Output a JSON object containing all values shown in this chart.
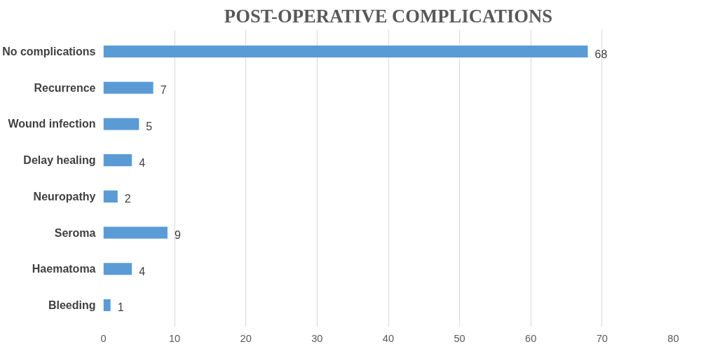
{
  "chart_data": {
    "type": "bar",
    "orientation": "horizontal",
    "title": "POST-OPERATIVE COMPLICATIONS",
    "categories": [
      "No complications",
      "Recurrence",
      "Wound infection",
      "Delay healing",
      "Neuropathy",
      "Seroma",
      "Haematoma",
      "Bleeding"
    ],
    "values": [
      68,
      7,
      5,
      4,
      2,
      9,
      4,
      1
    ],
    "color": "#5b9bd5",
    "xlim": [
      0,
      80
    ],
    "xticks": [
      0,
      10,
      20,
      30,
      40,
      50,
      60,
      70,
      80
    ],
    "grid": "x",
    "data_labels": true
  }
}
